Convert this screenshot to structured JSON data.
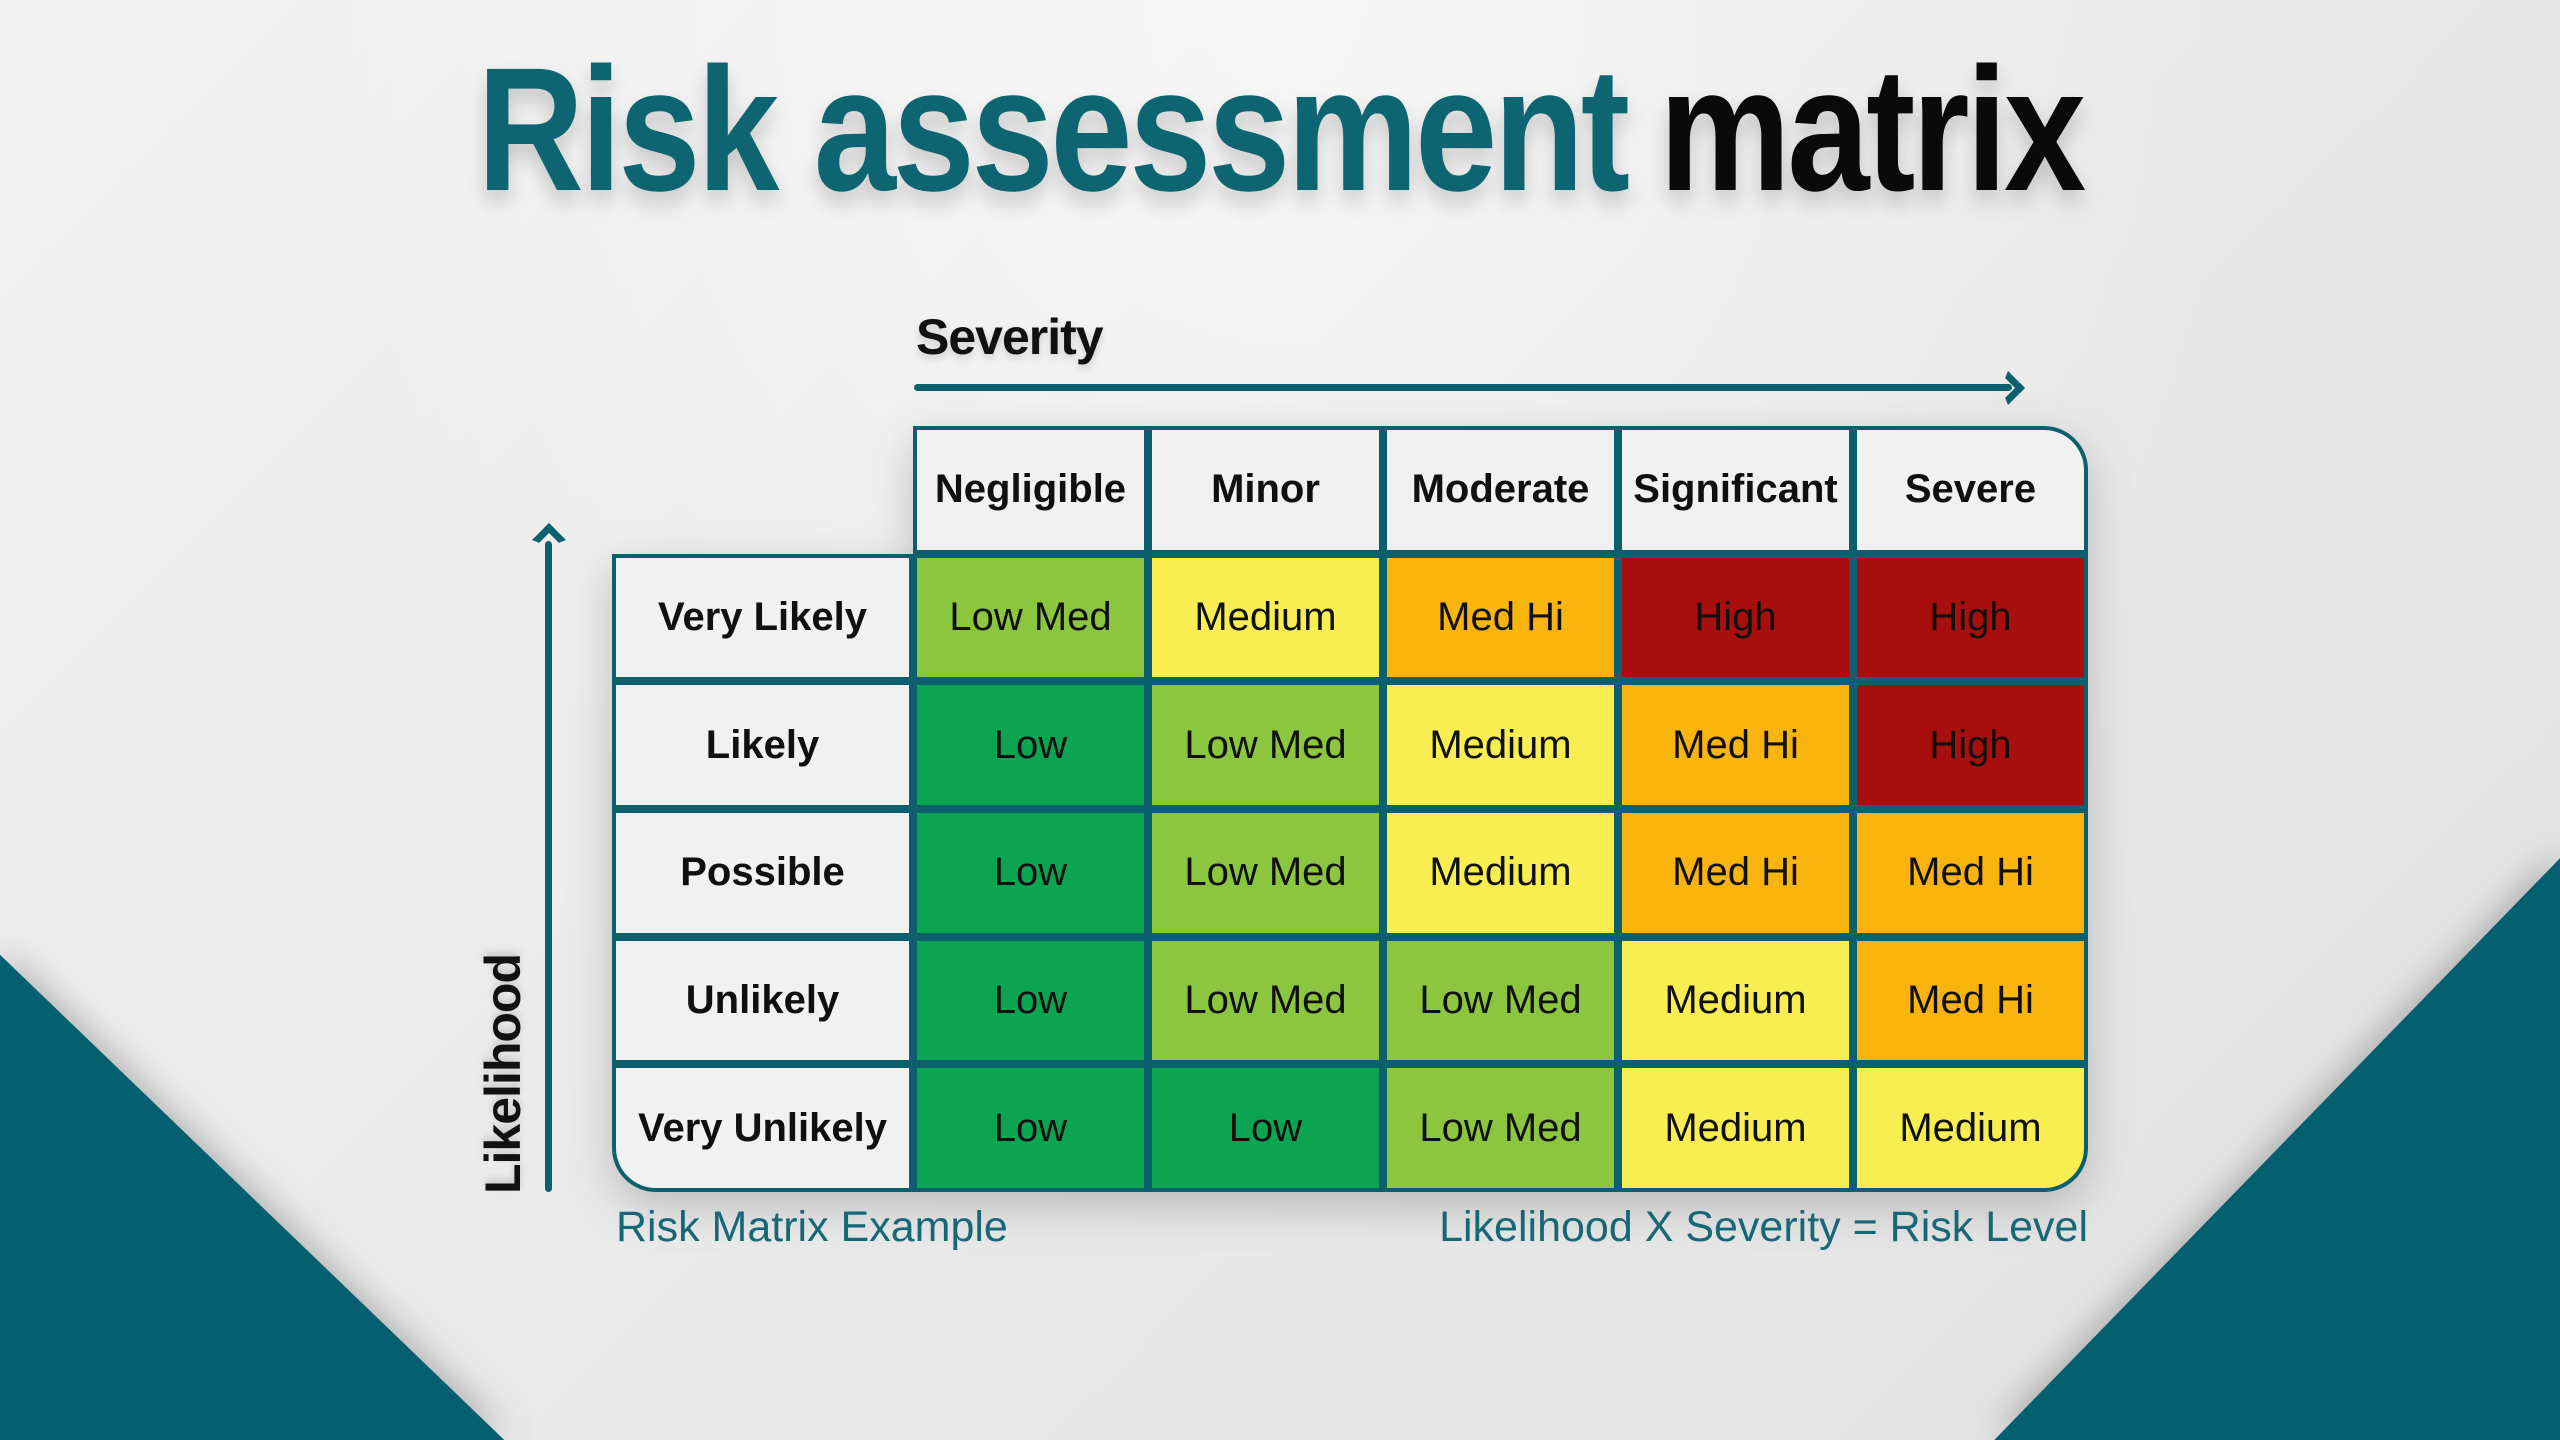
{
  "title": {
    "highlight": "Risk assessment",
    "rest": "matrix"
  },
  "x_axis": {
    "label": "Severity"
  },
  "y_axis": {
    "label": "Likelihood"
  },
  "matrix": {
    "column_headers": [
      "Negligible",
      "Minor",
      "Moderate",
      "Significant",
      "Severe"
    ],
    "row_headers": [
      "Very Likely",
      "Likely",
      "Possible",
      "Unlikely",
      "Very Unlikely"
    ],
    "cells": [
      [
        "Low Med",
        "Medium",
        "Med Hi",
        "High",
        "High"
      ],
      [
        "Low",
        "Low Med",
        "Medium",
        "Med Hi",
        "High"
      ],
      [
        "Low",
        "Low Med",
        "Medium",
        "Med Hi",
        "Med Hi"
      ],
      [
        "Low",
        "Low Med",
        "Low Med",
        "Medium",
        "Med Hi"
      ],
      [
        "Low",
        "Low",
        "Low Med",
        "Medium",
        "Medium"
      ]
    ],
    "levels": [
      [
        "low_med",
        "medium",
        "med_hi",
        "high",
        "high"
      ],
      [
        "low",
        "low_med",
        "medium",
        "med_hi",
        "high"
      ],
      [
        "low",
        "low_med",
        "medium",
        "med_hi",
        "med_hi"
      ],
      [
        "low",
        "low_med",
        "low_med",
        "medium",
        "med_hi"
      ],
      [
        "low",
        "low",
        "low_med",
        "medium",
        "medium"
      ]
    ]
  },
  "footer": {
    "left": "Risk Matrix Example",
    "right": "Likelihood X Severity = Risk Level"
  },
  "colors": {
    "low": "#0ba551",
    "low_med": "#8cc63e",
    "medium": "#f8ee52",
    "med_hi": "#f9b40e",
    "high": "#a80e0e",
    "border_teal": "#0c5f6d",
    "title_teal": "#0e6572",
    "caption_teal": "#176876",
    "corner_teal": "#045f6e",
    "header_bg": "#f1f1f1",
    "title_black": "#0a0a0a"
  }
}
